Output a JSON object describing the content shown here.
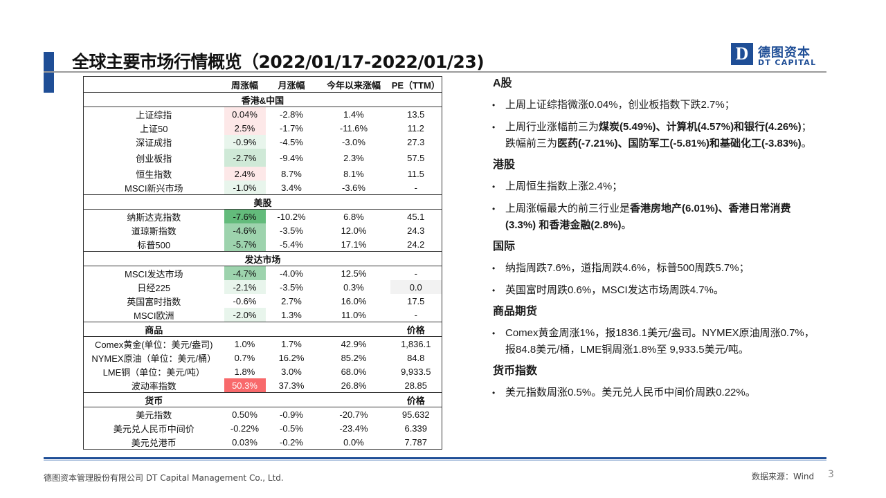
{
  "page": {
    "title": "全球主要市场行情概览（2022/01/17-2022/01/23)",
    "logo": {
      "mark": "D",
      "cn": "德图资本",
      "en": "DT CAPITAL"
    },
    "footer": {
      "company": "德图资本管理股份有限公司 DT Capital Management Co., Ltd.",
      "source": "数据来源：Wind",
      "page_number": "3"
    },
    "colors": {
      "brand_blue": "#1f4e96",
      "down_green": "#63bb7b",
      "up_red": "#f8696b"
    }
  },
  "table": {
    "header": [
      "",
      "周涨幅",
      "月涨幅",
      "今年以来涨幅",
      "PE（TTM）"
    ],
    "sections": [
      {
        "title": "香港&中国",
        "rows": [
          [
            "上证综指",
            "0.04%",
            "-2.8%",
            "1.4%",
            "13.5"
          ],
          [
            "上证50",
            "2.5%",
            "-1.7%",
            "-11.6%",
            "11.2"
          ],
          [
            "深证成指",
            "-0.9%",
            "-4.5%",
            "-3.0%",
            "27.3"
          ],
          [
            "创业板指",
            "-2.7%",
            "-9.4%",
            "2.3%",
            "57.5"
          ],
          [
            "恒生指数",
            "2.4%",
            "8.7%",
            "8.1%",
            "11.5"
          ],
          [
            "MSCI新兴市场",
            "-1.0%",
            "3.4%",
            "-3.6%",
            "-"
          ]
        ]
      },
      {
        "title": "美股",
        "rows": [
          [
            "纳斯达克指数",
            "-7.6%",
            "-10.2%",
            "6.8%",
            "45.1"
          ],
          [
            "道琼斯指数",
            "-4.6%",
            "-3.5%",
            "12.0%",
            "24.3"
          ],
          [
            "标普500",
            "-5.7%",
            "-5.4%",
            "17.1%",
            "24.2"
          ]
        ]
      },
      {
        "title": "发达市场",
        "rows": [
          [
            "MSCI发达市场",
            "-4.7%",
            "-4.0%",
            "12.5%",
            "-"
          ],
          [
            "日经225",
            "-2.1%",
            "-3.5%",
            "0.3%",
            "0.0"
          ],
          [
            "英国富时指数",
            "-0.6%",
            "2.7%",
            "16.0%",
            "17.5"
          ],
          [
            "MSCI欧洲",
            "-2.0%",
            "1.3%",
            "11.0%",
            "-"
          ]
        ]
      },
      {
        "title": "商品",
        "price_label": "价格",
        "rows": [
          [
            "Comex黄金(单位：美元/盎司)",
            "1.0%",
            "1.7%",
            "42.9%",
            "1,836.1"
          ],
          [
            "NYMEX原油（单位：美元/桶）",
            "0.7%",
            "16.2%",
            "85.2%",
            "84.8"
          ],
          [
            "LME铜（单位：美元/吨）",
            "1.8%",
            "3.0%",
            "68.0%",
            "9,933.5"
          ],
          [
            "波动率指数",
            "50.3%",
            "37.3%",
            "26.8%",
            "28.85"
          ]
        ]
      },
      {
        "title": "货币",
        "price_label": "价格",
        "rows": [
          [
            "美元指数",
            "0.50%",
            "-0.9%",
            "-20.7%",
            "95.632"
          ],
          [
            "美元兑人民币中间价",
            "-0.22%",
            "-0.5%",
            "-23.4%",
            "6.339"
          ],
          [
            "美元兑港币",
            "0.03%",
            "-0.2%",
            "0.0%",
            "7.787"
          ]
        ]
      }
    ]
  },
  "commentary": {
    "a_share": {
      "title": "A股",
      "b1": "上周上证综指微涨0.04%，创业板指数下跌2.7%；",
      "b2_pre": "上周行业涨幅前三为",
      "b2_bold1": "煤炭(5.49%)、计算机(4.57%)和银行(4.26%)",
      "b2_mid": "；跌幅前三为",
      "b2_bold2": "医药(-7.21%)、国防军工(-5.81%)和基础化工(-3.83%)",
      "b2_post": "。"
    },
    "hk": {
      "title": "港股",
      "b1": "上周恒生指数上涨2.4%；",
      "b2_pre": "上周涨幅最大的前三行业是",
      "b2_bold": "香港房地产(6.01%)、香港日常消费(3.3%) 和香港金融(2.8%)",
      "b2_post": "。"
    },
    "intl": {
      "title": "国际",
      "b1": "纳指周跌7.6%，道指周跌4.6%，标普500周跌5.7%；",
      "b2": "英国富时周跌0.6%，MSCI发达市场周跌4.7%。"
    },
    "commodities": {
      "title": "商品期货",
      "b1": "Comex黄金周涨1%，报1836.1美元/盎司。NYMEX原油周涨0.7%，报84.8美元/桶，LME铜周涨1.8%至 9,933.5美元/吨。"
    },
    "fx": {
      "title": "货币指数",
      "b1": "美元指数周涨0.5%。美元兑人民币中间价周跌0.22%。"
    }
  }
}
